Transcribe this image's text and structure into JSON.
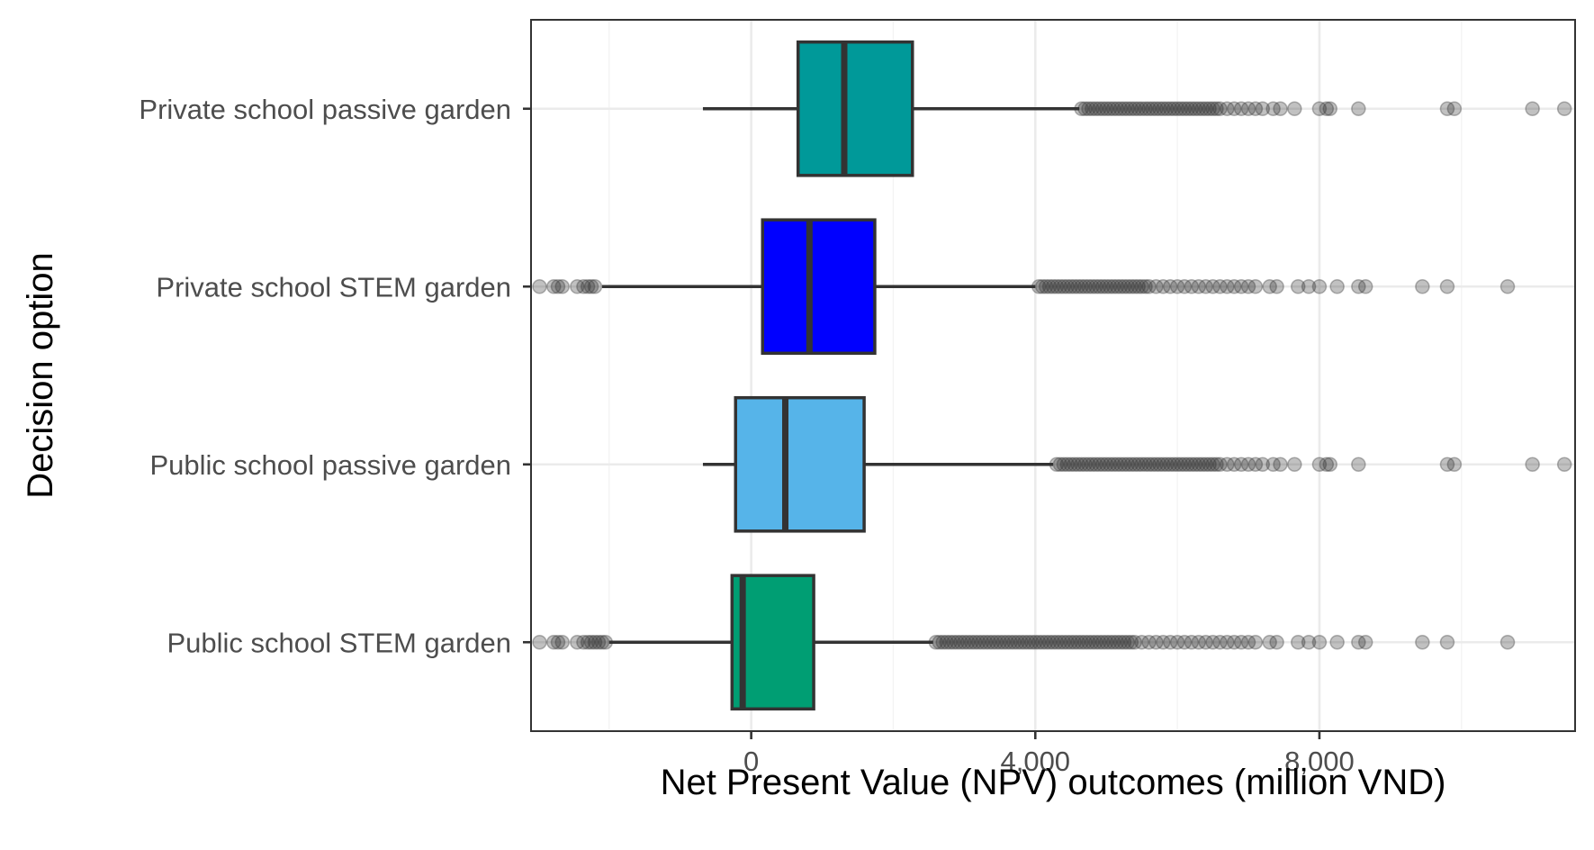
{
  "chart_data": {
    "type": "boxplot",
    "orientation": "horizontal",
    "xlabel": "Net Present Value (NPV) outcomes (million VND)",
    "ylabel": "Decision option",
    "xlim": [
      -3100,
      11600
    ],
    "x_ticks": [
      0,
      4000,
      8000
    ],
    "x_tick_labels": [
      "0",
      "4,000",
      "8,000"
    ],
    "x_minor_ticks": [
      -2000,
      2000,
      6000,
      10000
    ],
    "grid": true,
    "legend": "none",
    "categories": [
      "Private school passive garden",
      "Private school STEM garden",
      "Public school passive garden",
      "Public school STEM garden"
    ],
    "series": [
      {
        "category": "Private school passive garden",
        "color": "#009999",
        "whisker_low": -680,
        "q1": 660,
        "median": 1310,
        "q3": 2270,
        "whisker_high": 4620,
        "outliers": [
          4650,
          4700,
          4750,
          4800,
          4850,
          4900,
          4950,
          5000,
          5050,
          5100,
          5150,
          5200,
          5250,
          5300,
          5350,
          5400,
          5450,
          5500,
          5550,
          5600,
          5650,
          5700,
          5750,
          5800,
          5850,
          5900,
          5950,
          6000,
          6050,
          6100,
          6150,
          6200,
          6250,
          6300,
          6350,
          6400,
          6450,
          6500,
          6550,
          6600,
          6700,
          6800,
          6900,
          7000,
          7100,
          7200,
          7350,
          7450,
          7650,
          8000,
          8100,
          8150,
          8550,
          9800,
          9900,
          11000,
          11450
        ]
      },
      {
        "category": "Private school STEM garden",
        "color": "#0000FF",
        "whisker_low": -2100,
        "q1": 160,
        "median": 820,
        "q3": 1740,
        "whisker_high": 4000,
        "outliers": [
          -2980,
          -2780,
          -2720,
          -2660,
          -2450,
          -2360,
          -2300,
          -2250,
          -2200,
          4050,
          4100,
          4150,
          4200,
          4250,
          4300,
          4350,
          4400,
          4450,
          4500,
          4550,
          4600,
          4650,
          4700,
          4750,
          4800,
          4850,
          4900,
          4950,
          5000,
          5050,
          5100,
          5150,
          5200,
          5250,
          5300,
          5350,
          5400,
          5450,
          5500,
          5550,
          5600,
          5700,
          5800,
          5900,
          6000,
          6100,
          6200,
          6300,
          6400,
          6500,
          6600,
          6700,
          6800,
          6900,
          7000,
          7100,
          7300,
          7400,
          7700,
          7850,
          8000,
          8250,
          8550,
          8650,
          9450,
          9800,
          10650
        ]
      },
      {
        "category": "Public school passive garden",
        "color": "#56B4E9",
        "whisker_low": -680,
        "q1": -220,
        "median": 480,
        "q3": 1590,
        "whisker_high": 4250,
        "outliers": [
          4300,
          4350,
          4400,
          4450,
          4500,
          4550,
          4600,
          4650,
          4700,
          4750,
          4800,
          4850,
          4900,
          4950,
          5000,
          5050,
          5100,
          5150,
          5200,
          5250,
          5300,
          5350,
          5400,
          5450,
          5500,
          5550,
          5600,
          5650,
          5700,
          5750,
          5800,
          5850,
          5900,
          5950,
          6000,
          6050,
          6100,
          6150,
          6200,
          6250,
          6300,
          6350,
          6400,
          6450,
          6500,
          6550,
          6600,
          6700,
          6800,
          6900,
          7000,
          7100,
          7200,
          7350,
          7450,
          7650,
          8000,
          8100,
          8150,
          8550,
          9800,
          9900,
          11000,
          11450
        ]
      },
      {
        "category": "Public school STEM garden",
        "color": "#009E73",
        "whisker_low": -2000,
        "q1": -270,
        "median": -120,
        "q3": 880,
        "whisker_high": 2560,
        "outliers": [
          -2980,
          -2780,
          -2720,
          -2660,
          -2450,
          -2360,
          -2300,
          -2250,
          -2200,
          -2150,
          -2100,
          -2050,
          2600,
          2650,
          2700,
          2750,
          2800,
          2850,
          2900,
          2950,
          3000,
          3050,
          3100,
          3150,
          3200,
          3250,
          3300,
          3350,
          3400,
          3450,
          3500,
          3550,
          3600,
          3650,
          3700,
          3750,
          3800,
          3850,
          3900,
          3950,
          4000,
          4050,
          4100,
          4150,
          4200,
          4250,
          4300,
          4350,
          4400,
          4450,
          4500,
          4550,
          4600,
          4650,
          4700,
          4750,
          4800,
          4850,
          4900,
          4950,
          5000,
          5050,
          5100,
          5150,
          5200,
          5250,
          5300,
          5350,
          5400,
          5500,
          5600,
          5700,
          5800,
          5900,
          6000,
          6100,
          6200,
          6300,
          6400,
          6500,
          6600,
          6700,
          6800,
          6900,
          7000,
          7100,
          7300,
          7400,
          7700,
          7850,
          8000,
          8250,
          8550,
          8650,
          9450,
          9800,
          10650
        ]
      }
    ]
  }
}
